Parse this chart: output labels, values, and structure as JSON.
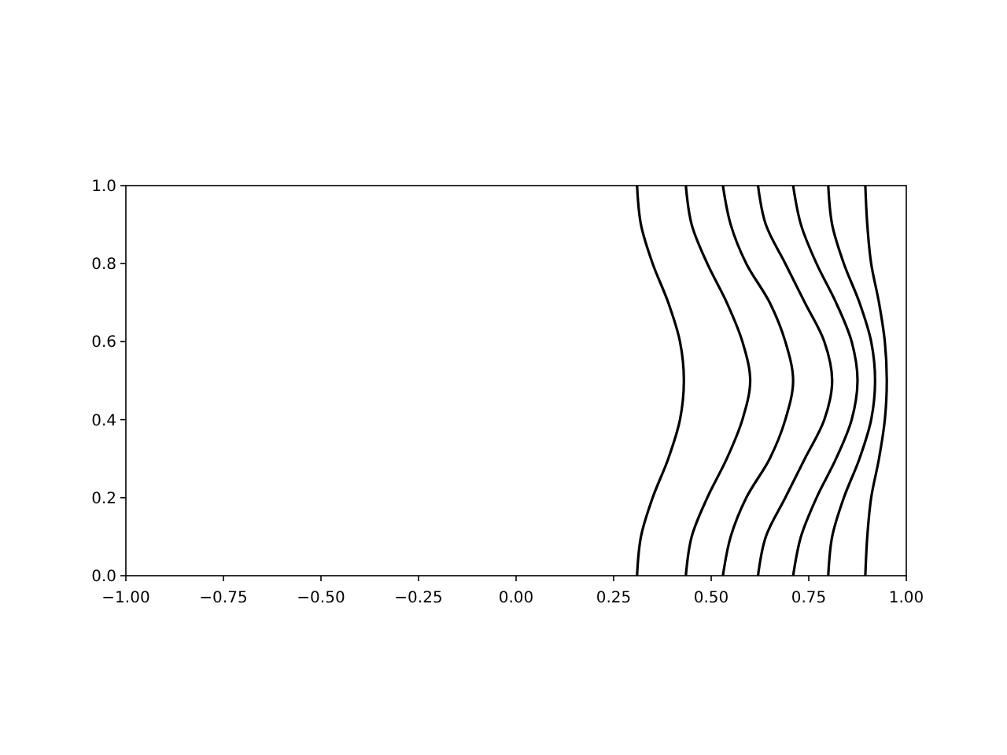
{
  "chart_data": {
    "type": "line",
    "xlim": [
      -1,
      1
    ],
    "ylim": [
      0,
      1
    ],
    "xticks": [
      {
        "value": -1,
        "label": "−1.00"
      },
      {
        "value": -0.75,
        "label": "−0.75"
      },
      {
        "value": -0.5,
        "label": "−0.50"
      },
      {
        "value": -0.25,
        "label": "−0.25"
      },
      {
        "value": 0,
        "label": "0.00"
      },
      {
        "value": 0.25,
        "label": "0.25"
      },
      {
        "value": 0.5,
        "label": "0.50"
      },
      {
        "value": 0.75,
        "label": "0.75"
      },
      {
        "value": 1,
        "label": "1.00"
      }
    ],
    "yticks": [
      {
        "value": 0,
        "label": "0.0"
      },
      {
        "value": 0.2,
        "label": "0.2"
      },
      {
        "value": 0.4,
        "label": "0.4"
      },
      {
        "value": 0.6,
        "label": "0.6"
      },
      {
        "value": 0.8,
        "label": "0.8"
      },
      {
        "value": 1,
        "label": "1.0"
      }
    ],
    "series": [
      {
        "color": "#000000",
        "x": [
          0.31,
          0.32,
          0.35,
          0.39,
          0.42,
          0.43,
          0.42,
          0.39,
          0.35,
          0.32,
          0.31
        ],
        "values": [
          0,
          0.1,
          0.2,
          0.3,
          0.4,
          0.5,
          0.6,
          0.7,
          0.8,
          0.9,
          1
        ]
      },
      {
        "color": "#000000",
        "x": [
          0.435,
          0.45,
          0.49,
          0.54,
          0.58,
          0.6,
          0.58,
          0.54,
          0.49,
          0.45,
          0.435
        ],
        "values": [
          0,
          0.1,
          0.2,
          0.3,
          0.4,
          0.5,
          0.6,
          0.7,
          0.8,
          0.9,
          1
        ]
      },
      {
        "color": "#000000",
        "x": [
          0.53,
          0.55,
          0.59,
          0.65,
          0.69,
          0.71,
          0.69,
          0.65,
          0.59,
          0.55,
          0.53
        ],
        "values": [
          0,
          0.1,
          0.2,
          0.3,
          0.4,
          0.5,
          0.6,
          0.7,
          0.8,
          0.9,
          1
        ]
      },
      {
        "color": "#000000",
        "x": [
          0.62,
          0.64,
          0.69,
          0.74,
          0.79,
          0.81,
          0.79,
          0.74,
          0.69,
          0.64,
          0.62
        ],
        "values": [
          0,
          0.1,
          0.2,
          0.3,
          0.4,
          0.5,
          0.6,
          0.7,
          0.8,
          0.9,
          1
        ]
      },
      {
        "color": "#000000",
        "x": [
          0.71,
          0.73,
          0.77,
          0.82,
          0.86,
          0.875,
          0.86,
          0.82,
          0.77,
          0.73,
          0.71
        ],
        "values": [
          0,
          0.1,
          0.2,
          0.3,
          0.4,
          0.5,
          0.6,
          0.7,
          0.8,
          0.9,
          1
        ]
      },
      {
        "color": "#000000",
        "x": [
          0.8,
          0.81,
          0.84,
          0.88,
          0.91,
          0.92,
          0.91,
          0.88,
          0.84,
          0.81,
          0.8
        ],
        "values": [
          0,
          0.1,
          0.2,
          0.3,
          0.4,
          0.5,
          0.6,
          0.7,
          0.8,
          0.9,
          1
        ]
      },
      {
        "color": "#000000",
        "x": [
          0.895,
          0.9,
          0.91,
          0.93,
          0.945,
          0.95,
          0.945,
          0.93,
          0.91,
          0.9,
          0.895
        ],
        "values": [
          0,
          0.1,
          0.2,
          0.3,
          0.4,
          0.5,
          0.6,
          0.7,
          0.8,
          0.9,
          1
        ]
      }
    ]
  }
}
